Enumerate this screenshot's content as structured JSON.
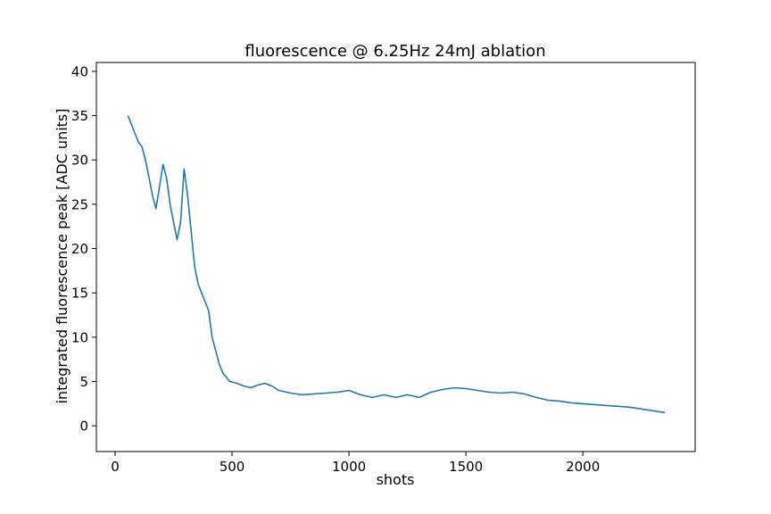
{
  "chart_data": {
    "type": "line",
    "title": "fluorescence @ 6.25Hz 24mJ ablation",
    "xlabel": "shots",
    "ylabel": "integrated fluorescence peak [ADC units]",
    "xlim": [
      -80,
      2480
    ],
    "ylim": [
      -2.9,
      41
    ],
    "xticks": [
      0,
      500,
      1000,
      1500,
      2000
    ],
    "yticks": [
      0,
      5,
      10,
      15,
      20,
      25,
      30,
      35,
      40
    ],
    "grid": false,
    "legend": "none",
    "series": [
      {
        "color": "#1f77b4",
        "x": [
          55,
          70,
          85,
          100,
          115,
          130,
          145,
          160,
          175,
          190,
          205,
          220,
          235,
          250,
          265,
          280,
          295,
          310,
          325,
          340,
          355,
          370,
          385,
          400,
          415,
          430,
          445,
          460,
          475,
          490,
          520,
          550,
          580,
          610,
          640,
          670,
          700,
          750,
          800,
          850,
          900,
          950,
          1000,
          1050,
          1100,
          1150,
          1200,
          1250,
          1300,
          1350,
          1400,
          1450,
          1500,
          1550,
          1600,
          1650,
          1700,
          1750,
          1800,
          1850,
          1900,
          1950,
          2000,
          2050,
          2100,
          2150,
          2200,
          2250,
          2300,
          2350
        ],
        "y": [
          35,
          34,
          33,
          32,
          31.5,
          30,
          28,
          26,
          24.5,
          27,
          29.5,
          28,
          25,
          23,
          21,
          23,
          29,
          26,
          22,
          18,
          16,
          15,
          14,
          13,
          10,
          8.5,
          7,
          6,
          5.5,
          5,
          4.8,
          4.5,
          4.3,
          4.6,
          4.8,
          4.5,
          4.0,
          3.7,
          3.5,
          3.6,
          3.7,
          3.8,
          4.0,
          3.5,
          3.2,
          3.5,
          3.2,
          3.5,
          3.2,
          3.8,
          4.1,
          4.3,
          4.2,
          4.0,
          3.8,
          3.7,
          3.8,
          3.6,
          3.2,
          2.9,
          2.8,
          2.6,
          2.5,
          2.4,
          2.3,
          2.2,
          2.1,
          1.9,
          1.7,
          1.5
        ]
      }
    ]
  }
}
